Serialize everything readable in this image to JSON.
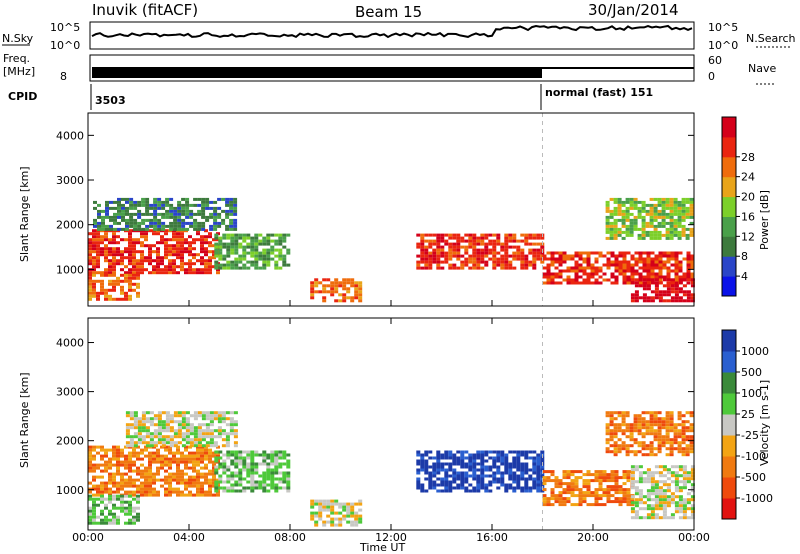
{
  "header": {
    "station": "Inuvik (fitACF)",
    "beam": "Beam 15",
    "date": "30/Jan/2014"
  },
  "status_panels": {
    "nsky_label": "N.Sky",
    "nsky_ticks": [
      "10^5",
      "10^0"
    ],
    "nsearch_label": "N.Search",
    "nsearch_ticks": [
      "10^5",
      "10^0"
    ],
    "freq_label_line1": "Freq.",
    "freq_label_line2": "[MHz]",
    "freq_ticks": [
      "8"
    ],
    "nave_label": "Nave",
    "nave_ticks": [
      "60",
      "0"
    ],
    "cpid_label": "CPID",
    "cpid_first": "3503",
    "cpid_second": "normal (fast) 151"
  },
  "axes": {
    "y_label_html": "Slant Range [km]",
    "y_ticks": [
      "1000",
      "2000",
      "3000",
      "4000"
    ],
    "x_ticks": [
      "00:00",
      "04:00",
      "08:00",
      "12:00",
      "16:00",
      "20:00",
      "00:00"
    ],
    "x_label": "Time UT"
  },
  "colors": {
    "power": [
      "#0a12e8",
      "#2a45c8",
      "#3d7a3d",
      "#4aa04a",
      "#7ccf2a",
      "#e8a41a",
      "#ef6c0c",
      "#ea2510",
      "#d4001a"
    ],
    "velocity": [
      "#e21210",
      "#ef4a0c",
      "#f07a10",
      "#f3a414",
      "#c8c8c4",
      "#4ec93a",
      "#3a8a3a",
      "#2a5fd0",
      "#1c3aa8"
    ]
  },
  "chart_data": [
    {
      "type": "heatmap",
      "title": "Power",
      "colorbar_label": "Power [dB]",
      "colorbar_ticks": [
        "4",
        "8",
        "12",
        "16",
        "20",
        "24",
        "28"
      ],
      "x_range": [
        "00:00",
        "00:00"
      ],
      "ylim": [
        180,
        4500
      ],
      "ylabel": "Slant Range [km]",
      "regions": [
        {
          "t0": 0.0,
          "t1": 5.2,
          "r0": 900,
          "r1": 1900,
          "level": 7
        },
        {
          "t0": 0.0,
          "t1": 2.0,
          "r0": 300,
          "r1": 900,
          "level": 6
        },
        {
          "t0": 5.0,
          "t1": 8.0,
          "r0": 1000,
          "r1": 1800,
          "level": 3
        },
        {
          "t0": 0.2,
          "t1": 5.8,
          "r0": 1900,
          "r1": 2600,
          "level": 2
        },
        {
          "t0": 8.8,
          "t1": 10.8,
          "r0": 300,
          "r1": 800,
          "level": 6
        },
        {
          "t0": 13.0,
          "t1": 18.0,
          "r0": 1000,
          "r1": 1800,
          "level": 7
        },
        {
          "t0": 18.0,
          "t1": 23.9,
          "r0": 700,
          "r1": 1400,
          "level": 7
        },
        {
          "t0": 21.5,
          "t1": 23.9,
          "r0": 300,
          "r1": 800,
          "level": 8
        },
        {
          "t0": 20.5,
          "t1": 23.9,
          "r0": 1700,
          "r1": 2600,
          "level": 4
        }
      ]
    },
    {
      "type": "heatmap",
      "title": "Velocity",
      "colorbar_label": "Velocity [m s-1]",
      "colorbar_ticks": [
        "-1000",
        "-500",
        "-100",
        "-25",
        "25",
        "100",
        "500",
        "1000"
      ],
      "x_range": [
        "00:00",
        "00:00"
      ],
      "ylim": [
        180,
        4500
      ],
      "ylabel": "Slant Range [km]",
      "regions": [
        {
          "t0": 0.0,
          "t1": 5.2,
          "r0": 900,
          "r1": 1900,
          "level": 2
        },
        {
          "t0": 0.0,
          "t1": 2.0,
          "r0": 300,
          "r1": 900,
          "level": 5
        },
        {
          "t0": 5.0,
          "t1": 8.0,
          "r0": 1000,
          "r1": 1800,
          "level": 5
        },
        {
          "t0": 1.5,
          "t1": 5.8,
          "r0": 1900,
          "r1": 2600,
          "level": 4
        },
        {
          "t0": 8.8,
          "t1": 10.8,
          "r0": 300,
          "r1": 800,
          "level": 4
        },
        {
          "t0": 13.0,
          "t1": 18.0,
          "r0": 1000,
          "r1": 1800,
          "level": 8
        },
        {
          "t0": 18.0,
          "t1": 21.5,
          "r0": 700,
          "r1": 1400,
          "level": 2
        },
        {
          "t0": 20.5,
          "t1": 23.9,
          "r0": 1700,
          "r1": 2600,
          "level": 2
        },
        {
          "t0": 21.5,
          "t1": 23.9,
          "r0": 400,
          "r1": 1500,
          "level": 4
        }
      ]
    }
  ]
}
